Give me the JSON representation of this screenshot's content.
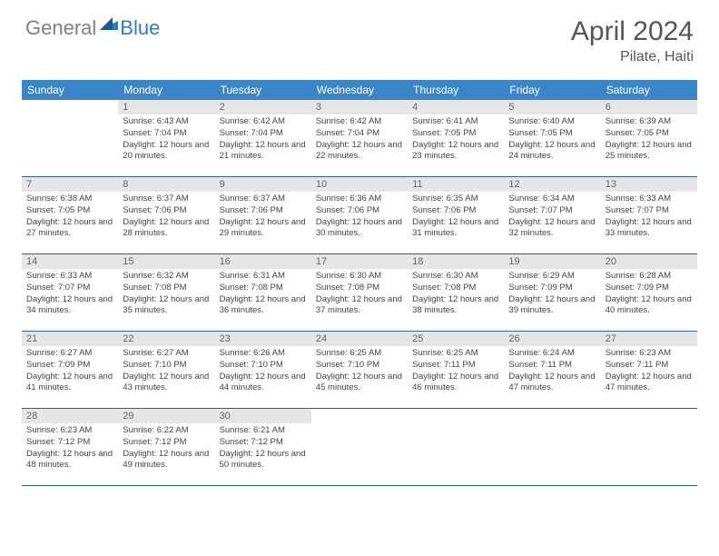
{
  "logo": {
    "general": "General",
    "blue": "Blue"
  },
  "title": "April 2024",
  "location": "Pilate, Haiti",
  "colors": {
    "header_bg": "#3b86c6",
    "header_text": "#ffffff",
    "daynum_bg": "#e6e6e6",
    "daynum_text": "#666666",
    "row_border": "#2d5f8f",
    "logo_gray": "#808080",
    "logo_blue": "#2d7dc1"
  },
  "daynames": [
    "Sunday",
    "Monday",
    "Tuesday",
    "Wednesday",
    "Thursday",
    "Friday",
    "Saturday"
  ],
  "weeks": [
    [
      {
        "n": "",
        "sr": "",
        "ss": "",
        "dl": ""
      },
      {
        "n": "1",
        "sr": "Sunrise: 6:43 AM",
        "ss": "Sunset: 7:04 PM",
        "dl": "Daylight: 12 hours and 20 minutes."
      },
      {
        "n": "2",
        "sr": "Sunrise: 6:42 AM",
        "ss": "Sunset: 7:04 PM",
        "dl": "Daylight: 12 hours and 21 minutes."
      },
      {
        "n": "3",
        "sr": "Sunrise: 6:42 AM",
        "ss": "Sunset: 7:04 PM",
        "dl": "Daylight: 12 hours and 22 minutes."
      },
      {
        "n": "4",
        "sr": "Sunrise: 6:41 AM",
        "ss": "Sunset: 7:05 PM",
        "dl": "Daylight: 12 hours and 23 minutes."
      },
      {
        "n": "5",
        "sr": "Sunrise: 6:40 AM",
        "ss": "Sunset: 7:05 PM",
        "dl": "Daylight: 12 hours and 24 minutes."
      },
      {
        "n": "6",
        "sr": "Sunrise: 6:39 AM",
        "ss": "Sunset: 7:05 PM",
        "dl": "Daylight: 12 hours and 25 minutes."
      }
    ],
    [
      {
        "n": "7",
        "sr": "Sunrise: 6:38 AM",
        "ss": "Sunset: 7:05 PM",
        "dl": "Daylight: 12 hours and 27 minutes."
      },
      {
        "n": "8",
        "sr": "Sunrise: 6:37 AM",
        "ss": "Sunset: 7:06 PM",
        "dl": "Daylight: 12 hours and 28 minutes."
      },
      {
        "n": "9",
        "sr": "Sunrise: 6:37 AM",
        "ss": "Sunset: 7:06 PM",
        "dl": "Daylight: 12 hours and 29 minutes."
      },
      {
        "n": "10",
        "sr": "Sunrise: 6:36 AM",
        "ss": "Sunset: 7:06 PM",
        "dl": "Daylight: 12 hours and 30 minutes."
      },
      {
        "n": "11",
        "sr": "Sunrise: 6:35 AM",
        "ss": "Sunset: 7:06 PM",
        "dl": "Daylight: 12 hours and 31 minutes."
      },
      {
        "n": "12",
        "sr": "Sunrise: 6:34 AM",
        "ss": "Sunset: 7:07 PM",
        "dl": "Daylight: 12 hours and 32 minutes."
      },
      {
        "n": "13",
        "sr": "Sunrise: 6:33 AM",
        "ss": "Sunset: 7:07 PM",
        "dl": "Daylight: 12 hours and 33 minutes."
      }
    ],
    [
      {
        "n": "14",
        "sr": "Sunrise: 6:33 AM",
        "ss": "Sunset: 7:07 PM",
        "dl": "Daylight: 12 hours and 34 minutes."
      },
      {
        "n": "15",
        "sr": "Sunrise: 6:32 AM",
        "ss": "Sunset: 7:08 PM",
        "dl": "Daylight: 12 hours and 35 minutes."
      },
      {
        "n": "16",
        "sr": "Sunrise: 6:31 AM",
        "ss": "Sunset: 7:08 PM",
        "dl": "Daylight: 12 hours and 36 minutes."
      },
      {
        "n": "17",
        "sr": "Sunrise: 6:30 AM",
        "ss": "Sunset: 7:08 PM",
        "dl": "Daylight: 12 hours and 37 minutes."
      },
      {
        "n": "18",
        "sr": "Sunrise: 6:30 AM",
        "ss": "Sunset: 7:08 PM",
        "dl": "Daylight: 12 hours and 38 minutes."
      },
      {
        "n": "19",
        "sr": "Sunrise: 6:29 AM",
        "ss": "Sunset: 7:09 PM",
        "dl": "Daylight: 12 hours and 39 minutes."
      },
      {
        "n": "20",
        "sr": "Sunrise: 6:28 AM",
        "ss": "Sunset: 7:09 PM",
        "dl": "Daylight: 12 hours and 40 minutes."
      }
    ],
    [
      {
        "n": "21",
        "sr": "Sunrise: 6:27 AM",
        "ss": "Sunset: 7:09 PM",
        "dl": "Daylight: 12 hours and 41 minutes."
      },
      {
        "n": "22",
        "sr": "Sunrise: 6:27 AM",
        "ss": "Sunset: 7:10 PM",
        "dl": "Daylight: 12 hours and 43 minutes."
      },
      {
        "n": "23",
        "sr": "Sunrise: 6:26 AM",
        "ss": "Sunset: 7:10 PM",
        "dl": "Daylight: 12 hours and 44 minutes."
      },
      {
        "n": "24",
        "sr": "Sunrise: 6:25 AM",
        "ss": "Sunset: 7:10 PM",
        "dl": "Daylight: 12 hours and 45 minutes."
      },
      {
        "n": "25",
        "sr": "Sunrise: 6:25 AM",
        "ss": "Sunset: 7:11 PM",
        "dl": "Daylight: 12 hours and 46 minutes."
      },
      {
        "n": "26",
        "sr": "Sunrise: 6:24 AM",
        "ss": "Sunset: 7:11 PM",
        "dl": "Daylight: 12 hours and 47 minutes."
      },
      {
        "n": "27",
        "sr": "Sunrise: 6:23 AM",
        "ss": "Sunset: 7:11 PM",
        "dl": "Daylight: 12 hours and 47 minutes."
      }
    ],
    [
      {
        "n": "28",
        "sr": "Sunrise: 6:23 AM",
        "ss": "Sunset: 7:12 PM",
        "dl": "Daylight: 12 hours and 48 minutes."
      },
      {
        "n": "29",
        "sr": "Sunrise: 6:22 AM",
        "ss": "Sunset: 7:12 PM",
        "dl": "Daylight: 12 hours and 49 minutes."
      },
      {
        "n": "30",
        "sr": "Sunrise: 6:21 AM",
        "ss": "Sunset: 7:12 PM",
        "dl": "Daylight: 12 hours and 50 minutes."
      },
      {
        "n": "",
        "sr": "",
        "ss": "",
        "dl": ""
      },
      {
        "n": "",
        "sr": "",
        "ss": "",
        "dl": ""
      },
      {
        "n": "",
        "sr": "",
        "ss": "",
        "dl": ""
      },
      {
        "n": "",
        "sr": "",
        "ss": "",
        "dl": ""
      }
    ]
  ]
}
